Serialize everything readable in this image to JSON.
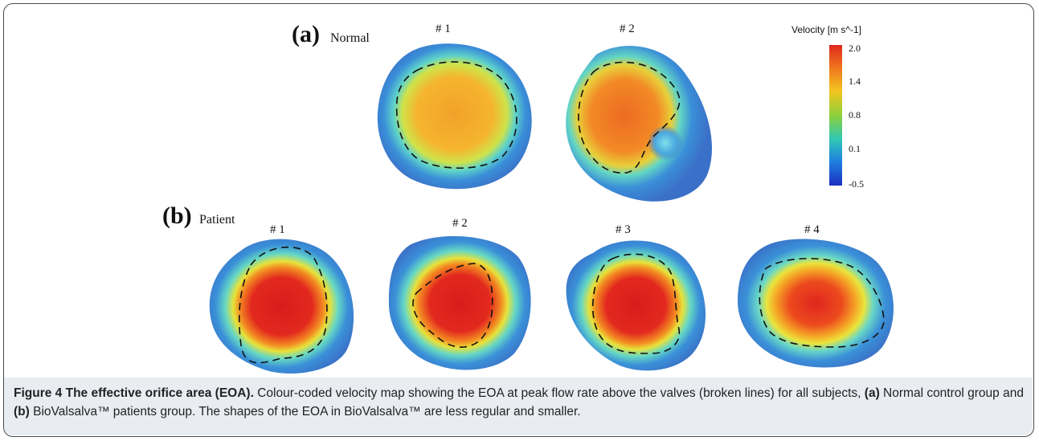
{
  "panels": {
    "a": {
      "letter": "(a)",
      "group": "Normal",
      "subjects": [
        "# 1",
        "# 2"
      ]
    },
    "b": {
      "letter": "(b)",
      "group": "Patient",
      "subjects": [
        "# 1",
        "# 2",
        "# 3",
        "# 4"
      ]
    }
  },
  "colorbar": {
    "title": "Velocity [m s^-1]",
    "ticks": [
      "2.0",
      "1.4",
      "0.8",
      "0.1",
      "-0.5"
    ],
    "colors": [
      "#e0281e",
      "#f07a1e",
      "#f2c51f",
      "#8ed03a",
      "#2fc8b4",
      "#1f7fe0",
      "#1a2fc0"
    ]
  },
  "caption": {
    "figure_label": "Figure 4 The effective orifice area (EOA).",
    "text_1": " Colour-coded velocity map showing the EOA at peak flow rate above the valves (broken lines) for all subjects, ",
    "a_ref": "(a)",
    "text_2": " Normal control group and ",
    "b_ref": "(b)",
    "text_3": " BioValsalva™ patients group. The shapes of the EOA in BioValsalva™ are less regular and smaller."
  }
}
